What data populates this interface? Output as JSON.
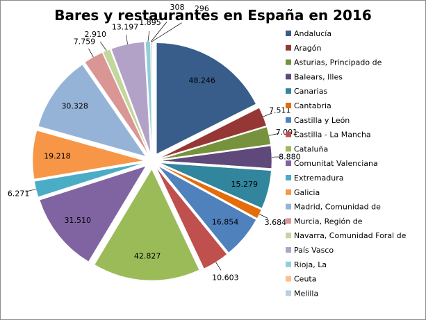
{
  "chart_data": {
    "type": "pie",
    "title": "Bares y restaurantes en España en 2016",
    "exploded": true,
    "legend_position": "right",
    "categories": [
      "Andalucía",
      "Aragón",
      "Asturias, Principado de",
      "Balears, Illes",
      "Canarias",
      "Cantabria",
      "Castilla y León",
      "Castilla - La Mancha",
      "Cataluña",
      "Comunitat Valenciana",
      "Extremadura",
      "Galicia",
      "Madrid, Comunidad de",
      "Murcia, Región de",
      "Navarra, Comunidad Foral de",
      "País Vasco",
      "Rioja, La",
      "Ceuta",
      "Melilla"
    ],
    "values": [
      48246,
      7511,
      7001,
      8880,
      15279,
      3684,
      16854,
      10603,
      42827,
      31510,
      6271,
      19218,
      30328,
      7759,
      2910,
      13197,
      1895,
      308,
      296
    ],
    "data_labels": [
      "48.246",
      "7.511",
      "7.001",
      "8.880",
      "15.279",
      "3.684",
      "16.854",
      "10.603",
      "42.827",
      "31.510",
      "6.271",
      "19.218",
      "30.328",
      "7.759",
      "2.910",
      "13.197",
      "1.895",
      "308",
      "296"
    ],
    "colors": [
      "#385d8a",
      "#953735",
      "#76923c",
      "#5f497a",
      "#31859c",
      "#e46c0a",
      "#4f81bd",
      "#c0504d",
      "#9bbb59",
      "#8064a2",
      "#4bacc6",
      "#f79646",
      "#95b3d7",
      "#d99694",
      "#c3d69b",
      "#b3a2c7",
      "#93cddd",
      "#fac08f",
      "#b9cde5"
    ]
  }
}
